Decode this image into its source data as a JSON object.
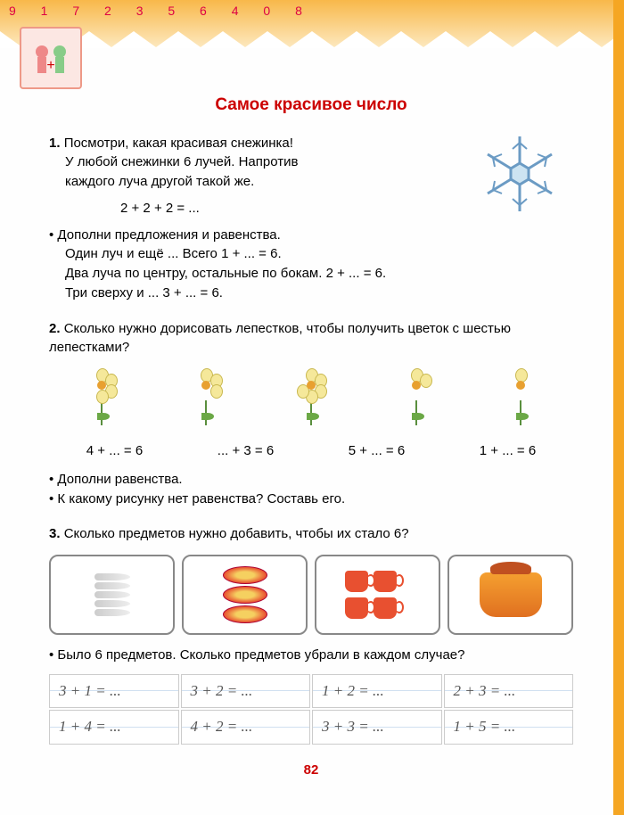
{
  "title": "Самое красивое число",
  "top_decor": "9 1 7 2 3 5 6 4 0 8",
  "sect1": {
    "num": "1.",
    "l1": "Посмотри, какая красивая снежинка!",
    "l2": "У любой снежинки 6 лучей. Напротив",
    "l3": "каждого луча другой такой же.",
    "eq1": "2 + 2 + 2 = ...",
    "b1": "Дополни предложения и равенства.",
    "b2": "Один луч и ещё ... Всего 1 + ... = 6.",
    "b3": "Два луча по центру, остальные по бокам. 2 + ... = 6.",
    "b4": "Три сверху и ... 3 + ... = 6."
  },
  "sect2": {
    "num": "2.",
    "q": "Сколько нужно дорисовать лепестков, чтобы получить цветок с шестью лепестками?",
    "eqs": [
      "4 + ... = 6",
      "... + 3 = 6",
      "5 + ... = 6",
      "1 + ... = 6"
    ],
    "b1": "Дополни равенства.",
    "b2": "К какому рисунку нет равенства? Составь его."
  },
  "sect3": {
    "num": "3.",
    "q": "Сколько предметов нужно добавить, чтобы их стало 6?",
    "b1": "Было 6 предметов. Сколько предметов убрали в каждом случае?"
  },
  "grid": [
    "3 + 1 = ...",
    "3 + 2 = ...",
    "1 + 2 = ...",
    "2 + 3 = ...",
    "1 + 4 = ...",
    "4 + 2 = ...",
    "3 + 3 = ...",
    "1 + 5 = ..."
  ],
  "pagenum": "82",
  "flower_petals": [
    4,
    3,
    5,
    2,
    1
  ],
  "colors": {
    "title": "#c00000",
    "border": "#f5a623",
    "petal": "#f5e89a"
  }
}
